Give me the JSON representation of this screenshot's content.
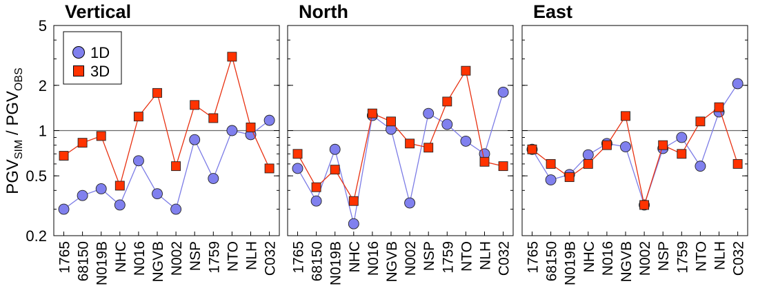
{
  "ylabel": {
    "main": "PGV",
    "sub1": "SIM",
    "sep": " / ",
    "sub2": "OBS"
  },
  "yticks": [
    {
      "value": 5,
      "label": "5"
    },
    {
      "value": 2,
      "label": "2"
    },
    {
      "value": 1,
      "label": "1"
    },
    {
      "value": 0.5,
      "label": "0.5"
    },
    {
      "value": 0.2,
      "label": "0.2"
    }
  ],
  "legend": {
    "items": [
      "1D",
      "3D"
    ]
  },
  "colors": {
    "1D_fill": "#8080ee",
    "1D_line": "#7b7be6",
    "3D_fill": "#ff3300",
    "3D_line": "#e83010"
  },
  "chart_data": [
    {
      "type": "line",
      "title": "Vertical",
      "yscale": "log",
      "ylim": [
        0.2,
        5
      ],
      "reference_line": 1,
      "categories": [
        "1765",
        "68150",
        "N019B",
        "NHC",
        "N016",
        "NGVB",
        "N002",
        "NSP",
        "1759",
        "NTO",
        "NLH",
        "C032"
      ],
      "series": [
        {
          "name": "1D",
          "marker": "circle",
          "values": [
            0.3,
            0.37,
            0.41,
            0.32,
            0.63,
            0.38,
            0.3,
            0.87,
            0.48,
            1.0,
            0.94,
            1.17
          ]
        },
        {
          "name": "3D",
          "marker": "square",
          "values": [
            0.68,
            0.83,
            0.92,
            0.43,
            1.24,
            1.78,
            0.58,
            1.48,
            1.21,
            3.1,
            1.05,
            0.56
          ]
        }
      ]
    },
    {
      "type": "line",
      "title": "North",
      "yscale": "log",
      "ylim": [
        0.2,
        5
      ],
      "reference_line": 1,
      "categories": [
        "1765",
        "68150",
        "N019B",
        "NHC",
        "N016",
        "NGVB",
        "N002",
        "NSP",
        "1759",
        "NTO",
        "NLH",
        "C032"
      ],
      "series": [
        {
          "name": "1D",
          "marker": "circle",
          "values": [
            0.56,
            0.34,
            0.75,
            0.24,
            1.26,
            1.02,
            0.33,
            1.3,
            1.1,
            0.85,
            0.7,
            1.8
          ]
        },
        {
          "name": "3D",
          "marker": "square",
          "values": [
            0.7,
            0.42,
            0.55,
            0.34,
            1.3,
            1.15,
            0.82,
            0.77,
            1.56,
            2.5,
            0.62,
            0.58
          ]
        }
      ]
    },
    {
      "type": "line",
      "title": "East",
      "yscale": "log",
      "ylim": [
        0.2,
        5
      ],
      "reference_line": 1,
      "categories": [
        "1765",
        "68150",
        "N019B",
        "NHC",
        "N016",
        "NGVB",
        "N002",
        "NSP",
        "1759",
        "NTO",
        "NLH",
        "C032"
      ],
      "series": [
        {
          "name": "1D",
          "marker": "circle",
          "values": [
            0.75,
            0.47,
            0.51,
            0.69,
            0.82,
            0.78,
            0.32,
            0.76,
            0.9,
            0.58,
            1.33,
            2.05
          ]
        },
        {
          "name": "3D",
          "marker": "square",
          "values": [
            0.75,
            0.6,
            0.49,
            0.6,
            0.8,
            1.25,
            0.32,
            0.8,
            0.7,
            1.15,
            1.43,
            0.6
          ]
        }
      ]
    }
  ]
}
